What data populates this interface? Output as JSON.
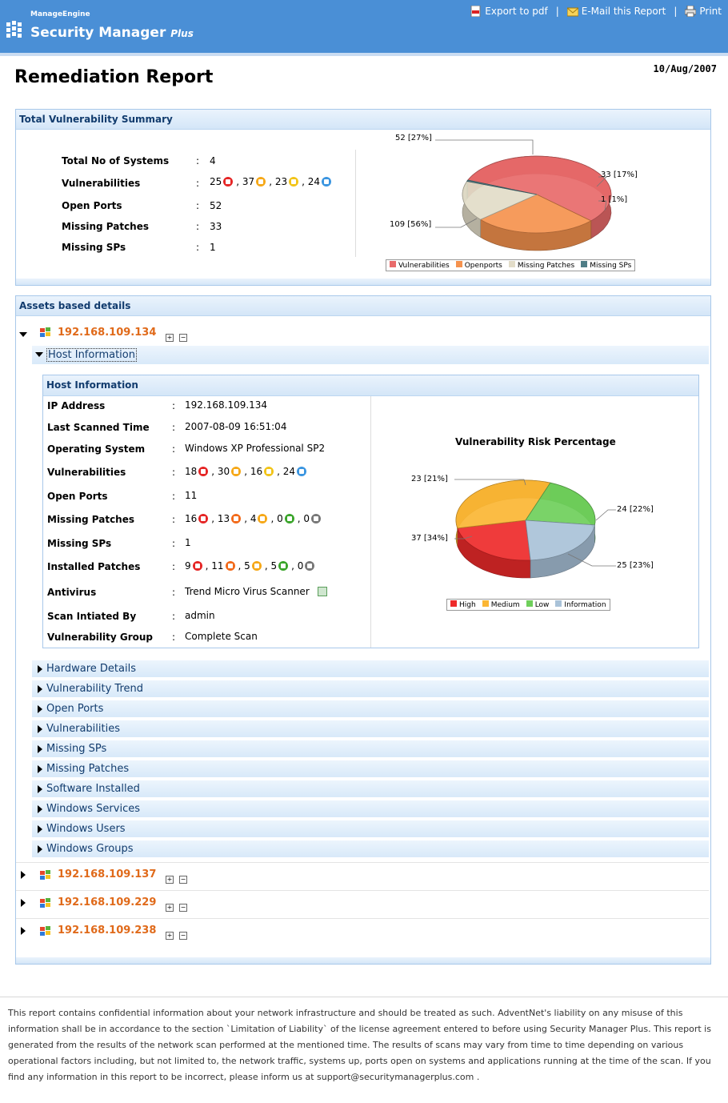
{
  "header": {
    "brand_small": "ManageEngine",
    "brand_large": "Security Manager",
    "brand_plus": "Plus",
    "links": {
      "export_pdf": "Export to pdf",
      "sep1": "|",
      "email": "E-Mail this Report",
      "sep2": "|",
      "print": "Print"
    }
  },
  "report": {
    "title": "Remediation Report",
    "date": "10/Aug/2007"
  },
  "summary": {
    "heading": "Total Vulnerability Summary",
    "rows": [
      {
        "label": "Total No of Systems",
        "colon": ":",
        "value": "4"
      },
      {
        "label": "Vulnerabilities",
        "colon": ":",
        "v1": "25",
        "v2": ", 37",
        "v3": ", 23",
        "v4": ", 24"
      },
      {
        "label": "Open Ports",
        "colon": ":",
        "value": "52"
      },
      {
        "label": "Missing Patches",
        "colon": ":",
        "value": "33"
      },
      {
        "label": "Missing SPs",
        "colon": ":",
        "value": "1"
      }
    ],
    "pie_labels": {
      "a": "52 [27%]",
      "b": "33 [17%]",
      "c": "1 [1%]",
      "d": "109 [56%]"
    },
    "legend": [
      "Vulnerabilities",
      "Openports",
      "Missing Patches",
      "Missing SPs"
    ]
  },
  "chart_data": {
    "type": "pie",
    "title": "",
    "slices": [
      {
        "label": "Vulnerabilities",
        "value": 109,
        "percent": 56
      },
      {
        "label": "Openports",
        "value": 52,
        "percent": 27
      },
      {
        "label": "Missing Patches",
        "value": 33,
        "percent": 17
      },
      {
        "label": "Missing SPs",
        "value": 1,
        "percent": 1
      }
    ],
    "second_chart": {
      "type": "pie",
      "title": "Vulnerability Risk Percentage",
      "slices": [
        {
          "label": "High",
          "value": 25,
          "percent": 23
        },
        {
          "label": "Medium",
          "value": 37,
          "percent": 34
        },
        {
          "label": "Low",
          "value": 23,
          "percent": 21
        },
        {
          "label": "Information",
          "value": 24,
          "percent": 22
        }
      ]
    }
  },
  "assets": {
    "heading": "Assets based details",
    "hosts": [
      "192.168.109.134",
      "192.168.109.137",
      "192.168.109.229",
      "192.168.109.238"
    ],
    "host_info_toggle": "Host Information",
    "host_info": {
      "heading": "Host Information",
      "ip_label": "IP Address",
      "ip": "192.168.109.134",
      "scan_label": "Last Scanned Time",
      "scan": "2007-08-09 16:51:04",
      "os_label": "Operating System",
      "os": "Windows XP Professional SP2",
      "vuln_label": "Vulnerabilities",
      "vuln": [
        "18",
        ", 30",
        ", 16",
        ", 24"
      ],
      "ports_label": "Open Ports",
      "ports": "11",
      "mp_label": "Missing Patches",
      "mp": [
        "16",
        ", 13",
        ", 4",
        ", 0",
        ", 0"
      ],
      "msp_label": "Missing SPs",
      "msp": "1",
      "ip_inst_label": "Installed Patches",
      "inst": [
        "9",
        ", 11",
        ", 5",
        ", 5",
        ", 0"
      ],
      "av_label": "Antivirus",
      "av": "Trend Micro Virus Scanner",
      "by_label": "Scan Intiated By",
      "by": "admin",
      "grp_label": "Vulnerability Group",
      "grp": "Complete Scan",
      "colon": ":",
      "chart_title": "Vulnerability Risk Percentage",
      "pie_labels": {
        "low": "23 [21%]",
        "info": "24 [22%]",
        "med": "37 [34%]",
        "high": "25 [23%]"
      },
      "legend": [
        "High",
        "Medium",
        "Low",
        "Information"
      ]
    },
    "sections": [
      "Hardware Details",
      "Vulnerability Trend",
      "Open Ports",
      "Vulnerabilities",
      "Missing SPs",
      "Missing Patches",
      "Software Installed",
      "Windows Services",
      "Windows Users",
      "Windows Groups"
    ]
  },
  "footer": {
    "text": "This report contains confidential information about your network infrastructure and should be treated as such. AdventNet's liability on any misuse of this information shall be in accordance to the section `Limitation of Liability` of the license agreement entered to before using Security Manager Plus. This report is generated from the results of the network scan performed at the mentioned time. The results of scans may vary from time to time depending on various operational factors including, but not limited to, the network traffic, systems up, ports open on systems and applications running at the time of the scan. If you find any information in this report to be incorrect, please inform us at support@securitymanagerplus.com ."
  },
  "colors": {
    "header_blue": "#4a8fd6",
    "link_orange": "#e06a1a",
    "vuln_red": "#e86a6a",
    "openports_orange": "#f5924e",
    "patches_beige": "#e2dcc8",
    "sps_teal": "#4f7d86",
    "high": "#ee2a2a",
    "medium": "#fbb634",
    "low": "#6fcf5b",
    "info": "#a9c2d8"
  }
}
